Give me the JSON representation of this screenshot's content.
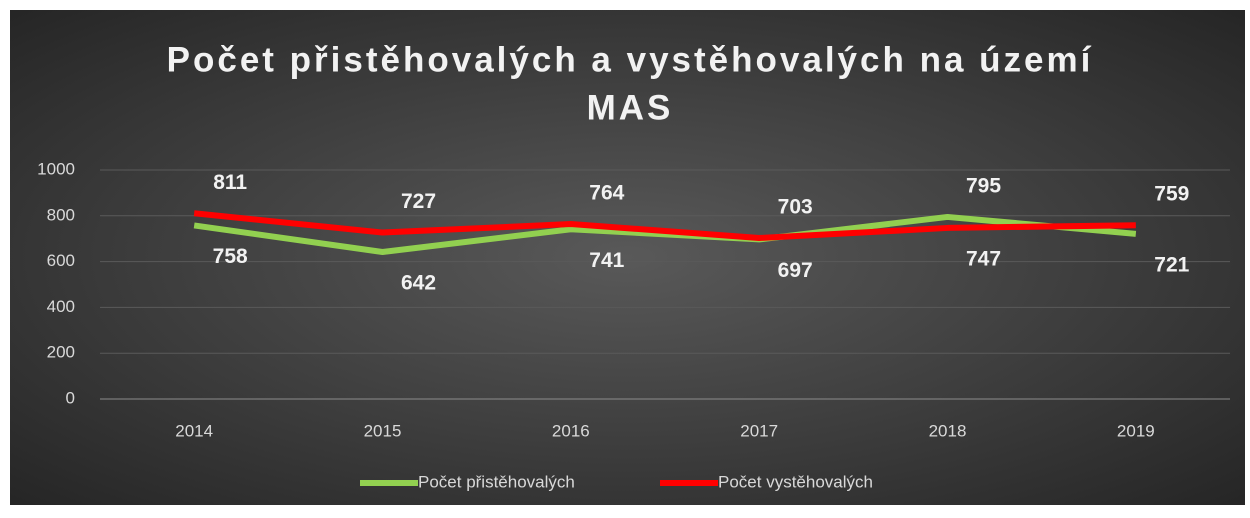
{
  "chart_data": {
    "type": "line",
    "title": [
      "Počet přistěhovalých a vystěhovalých na území",
      "MAS"
    ],
    "categories": [
      "2014",
      "2015",
      "2016",
      "2017",
      "2018",
      "2019"
    ],
    "series": [
      {
        "name": "Počet přistěhovalých",
        "color": "#92d050",
        "values": [
          758,
          642,
          741,
          697,
          795,
          721
        ]
      },
      {
        "name": "Počet vystěhovalých",
        "color": "#ff0000",
        "values": [
          811,
          727,
          764,
          703,
          747,
          759
        ]
      }
    ],
    "ylim": [
      0,
      1000
    ],
    "yticks": [
      0,
      200,
      400,
      600,
      800,
      1000
    ],
    "grid": true,
    "legend": "bottom"
  }
}
